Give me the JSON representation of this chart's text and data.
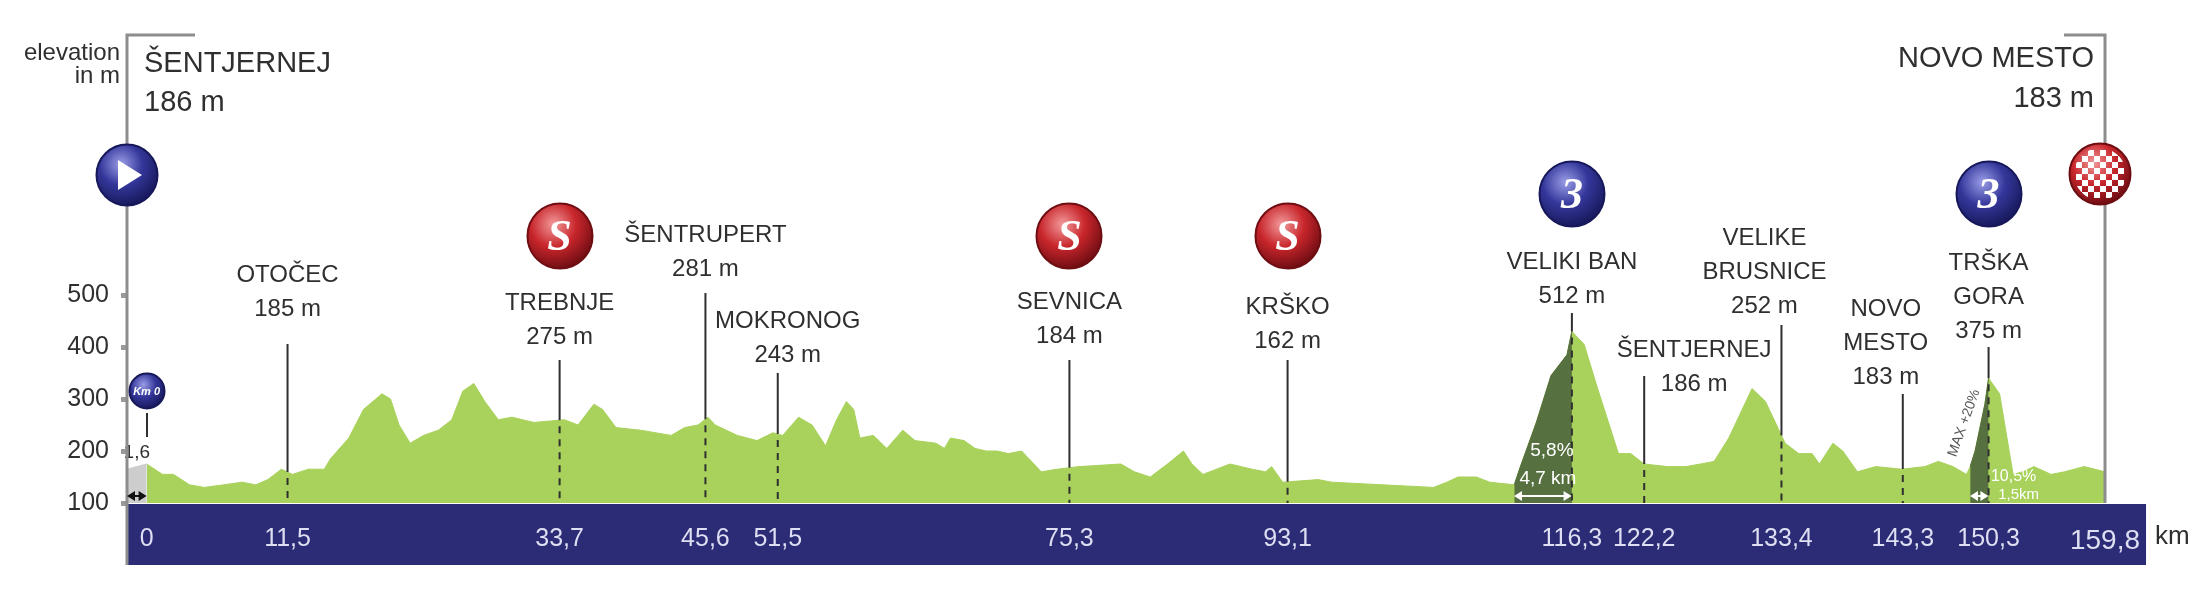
{
  "chart_data": {
    "type": "area",
    "xlabel": "km",
    "ylabel": "elevation in m",
    "xlim": [
      -1.6,
      159.8
    ],
    "xticks": [
      0,
      {
        "value": 11.5,
        "label": "11,5"
      },
      {
        "value": 33.7,
        "label": "33,7"
      },
      {
        "value": 45.6,
        "label": "45,6"
      },
      {
        "value": 51.5,
        "label": "51,5"
      },
      {
        "value": 75.3,
        "label": "75,3"
      },
      {
        "value": 93.1,
        "label": "93,1"
      },
      {
        "value": 116.3,
        "label": "116,3"
      },
      {
        "value": 122.2,
        "label": "122,2"
      },
      {
        "value": 133.4,
        "label": "133,4"
      },
      {
        "value": 143.3,
        "label": "143,3"
      },
      {
        "value": 150.3,
        "label": "150,3"
      },
      {
        "value": 159.8,
        "label": "159,8"
      }
    ],
    "ylim": [
      100,
      1000
    ],
    "yticks": [
      100,
      200,
      300,
      400,
      500
    ],
    "series": [
      {
        "color": "#a8d25b",
        "x": [
          0,
          1.3,
          2.2,
          3.5,
          4.7,
          6.3,
          7.8,
          8.9,
          9.9,
          11,
          11.9,
          13.2,
          14.5,
          15,
          16.5,
          17.7,
          19.2,
          19.9,
          20.6,
          21.5,
          22.6,
          23.8,
          24.9,
          25.8,
          26.7,
          27.6,
          28.7,
          29.8,
          31.6,
          34.1,
          35.2,
          36.5,
          37.2,
          38.3,
          40.3,
          42.8,
          43.9,
          45,
          45.8,
          46.4,
          48.2,
          49.8,
          51.1,
          51.9,
          53.2,
          54.3,
          55.4,
          56.3,
          57.1,
          57.7,
          58.2,
          59.3,
          60.4,
          61.7,
          62.7,
          64.4,
          65.1,
          65.6,
          66.7,
          67.6,
          68.5,
          69.4,
          70.3,
          71.4,
          71.8,
          73,
          74.3,
          76.1,
          79.5,
          80.6,
          81.9,
          83.3,
          84.6,
          85.3,
          86.2,
          88.4,
          90.2,
          91.3,
          91.8,
          92.7,
          95.6,
          96.7,
          105,
          106.1,
          107,
          108.5,
          109.6,
          111.6,
          112.1,
          113.4,
          114.6,
          115.9,
          116.3,
          117.3,
          118.4,
          120.1,
          121.1,
          122.2,
          124.1,
          125.6,
          126.8,
          127.9,
          129.1,
          131,
          132.1,
          133.7,
          134.8,
          135.9,
          136.5,
          137.6,
          138.4,
          139.6,
          141.1,
          143.2,
          145.1,
          146.2,
          147.4,
          148.5,
          148.8,
          149.2,
          150,
          150.3,
          151.2,
          152.3,
          153.1,
          154,
          155.4,
          156.5,
          158.1,
          159.8
        ],
        "values": [
          175,
          155,
          155,
          135,
          130,
          135,
          140,
          135,
          145,
          165,
          155,
          165,
          165,
          185,
          225,
          280,
          310,
          300,
          250,
          215,
          230,
          240,
          260,
          315,
          330,
          295,
          260,
          265,
          255,
          260,
          250,
          290,
          280,
          245,
          240,
          230,
          245,
          250,
          265,
          250,
          230,
          220,
          235,
          230,
          265,
          250,
          210,
          260,
          295,
          280,
          225,
          230,
          205,
          240,
          220,
          215,
          205,
          225,
          220,
          205,
          200,
          200,
          195,
          200,
          190,
          160,
          165,
          170,
          175,
          160,
          150,
          175,
          200,
          175,
          155,
          175,
          165,
          160,
          170,
          140,
          145,
          140,
          130,
          140,
          150,
          150,
          140,
          135,
          170,
          255,
          345,
          385,
          430,
          405,
          320,
          195,
          195,
          175,
          170,
          170,
          175,
          180,
          225,
          320,
          295,
          215,
          195,
          195,
          175,
          215,
          200,
          160,
          170,
          165,
          170,
          180,
          170,
          155,
          170,
          200,
          290,
          340,
          310,
          155,
          160,
          170,
          155,
          160,
          170,
          160
        ]
      },
      {
        "color": "#cdcdcd",
        "x": [
          -1.6,
          -0.8,
          0
        ],
        "values": [
          165,
          170,
          175
        ]
      },
      {
        "color": "#56703f",
        "x": [
          111.6,
          112.1,
          113.4,
          114.6,
          115.9,
          116.3
        ],
        "values": [
          135,
          170,
          255,
          345,
          385,
          430
        ]
      },
      {
        "color": "#56703f",
        "x": [
          148.8,
          149.2,
          150,
          150.3
        ],
        "values": [
          170,
          200,
          290,
          340
        ]
      }
    ],
    "ref_lines": [
      {
        "axis": "x",
        "value": 11.5,
        "label": "OTOČEC\n185 m"
      },
      {
        "axis": "x",
        "value": 33.7,
        "label": "TREBNJE\n275 m"
      },
      {
        "axis": "x",
        "value": 45.6,
        "label": "ŠENTRUPERT\n281 m"
      },
      {
        "axis": "x",
        "value": 51.5,
        "label": "MOKRONOG\n243 m"
      },
      {
        "axis": "x",
        "value": 75.3,
        "label": "SEVNICA\n184 m"
      },
      {
        "axis": "x",
        "value": 93.1,
        "label": "KRŠKO\n162 m"
      },
      {
        "axis": "x",
        "value": 116.3,
        "label": "VELIKI BAN\n512 m"
      },
      {
        "axis": "x",
        "value": 122.2,
        "label": "ŠENTJERNEJ\n186 m"
      },
      {
        "axis": "x",
        "value": 133.4,
        "label": "VELIKE\nBRUSNICE\n252 m"
      },
      {
        "axis": "x",
        "value": 143.3,
        "label": "NOVO\nMESTO\n183 m"
      },
      {
        "axis": "x",
        "value": 150.3,
        "label": "TRŠKA\nGORA\n375 m"
      }
    ],
    "annotations": [
      "ŠENTJERNEJ\n186 m",
      "NOVO MESTO\n183 m",
      "Km 0",
      "S",
      "S",
      "S",
      "3",
      "3",
      "1,6",
      "5,8%",
      "4,7 km",
      "MAX +20%",
      "10,5%",
      "1,5km"
    ]
  }
}
